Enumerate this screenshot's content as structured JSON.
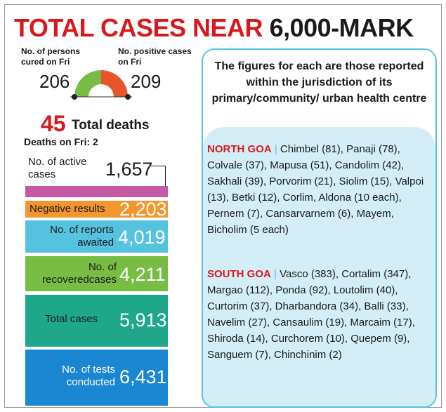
{
  "headline": {
    "part1": "TOTAL CASES NEAR",
    "part2": "6,000-MARK"
  },
  "gauge": {
    "cured_label": "No. of persons cured on Fri",
    "cured_value": "206",
    "positive_label": "No. positive cases on Fri",
    "positive_value": "209",
    "colors": {
      "cured": "#77bd44",
      "positive": "#e8542b"
    }
  },
  "deaths": {
    "total": "45",
    "total_label": "Total deaths",
    "fri_label": "Deaths on Fri: 2"
  },
  "stats": {
    "active": {
      "label": "No. of active cases",
      "value": "1,657",
      "color": "#c45aa6"
    },
    "negative": {
      "label": "Negative results",
      "value": "2,203",
      "color": "#f3962d"
    },
    "awaited": {
      "label": "No. of reports awaited",
      "value": "4,019",
      "color": "#55c3e0"
    },
    "recovered": {
      "label": "No. of recoveredcases",
      "value": "4,211",
      "color": "#77bd44"
    },
    "total": {
      "label": "Total cases",
      "value": "5,913",
      "color": "#1fa789"
    },
    "tests": {
      "label": "No. of tests conducted",
      "value": "6,431",
      "color": "#1b86d1"
    }
  },
  "info": {
    "header": "The figures for each are those reported within the jurisdiction of its primary/community/ urban health centre",
    "north": {
      "tag": "NORTH GOA",
      "separator": "|",
      "text": "Chimbel (81), Panaji (78), Colvale (37), Mapusa (51), Candolim (42), Sakhali (39), Porvorim (21), Siolim (15), Valpoi (13), Betki (12), Corlim, Aldona (10 each), Pernem (7), Cansarvarnem (6), Mayem, Bicholim (5 each)"
    },
    "south": {
      "tag": "SOUTH GOA",
      "separator": "|",
      "text": "Vasco (383), Cortalim (347), Margao (112), Ponda (92), Loutolim (40), Curtorim (37), Dharbandora (34), Balli (33), Navelim (27), Cansaulim (19), Marcaim (17), Shiroda (14), Curchorem (10), Quepem (9), Sanguem (7), Chinchinim (2)"
    }
  }
}
